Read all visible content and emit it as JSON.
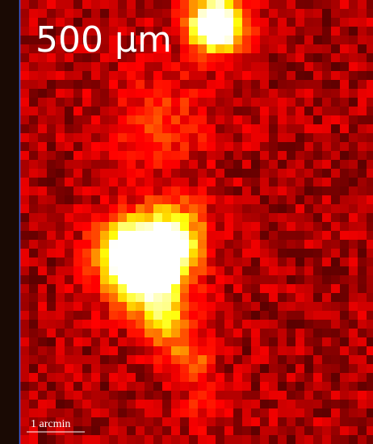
{
  "image": {
    "label": "500 μm",
    "scale_bar": "1 arcmin"
  }
}
